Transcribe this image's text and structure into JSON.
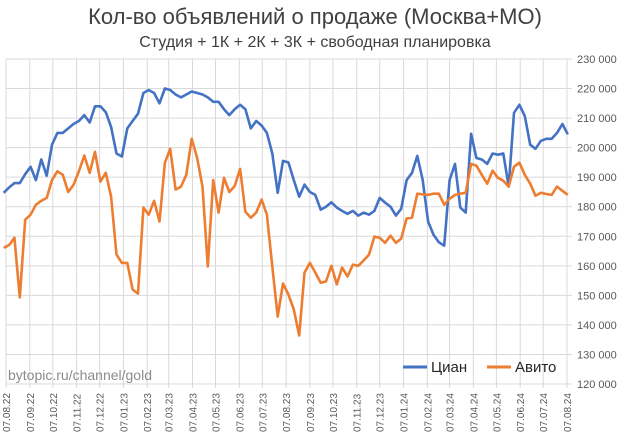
{
  "chart_data": {
    "type": "line",
    "title": "Кол-во объявлений о продаже (Москва+МО)",
    "subtitle": "Студия + 1К + 2К + 3К + свободная планировка",
    "watermark": "bytopic.ru/channel/gold",
    "ylim": [
      120000,
      230000
    ],
    "y_ticks": [
      "120 000",
      "130 000",
      "140 000",
      "150 000",
      "160 000",
      "170 000",
      "180 000",
      "190 000",
      "200 000",
      "210 000",
      "220 000",
      "230 000"
    ],
    "y_axis_position": "right",
    "x_ticks": [
      "07.08.22",
      "07.09.22",
      "07.10.22",
      "07.11.22",
      "07.12.22",
      "07.01.23",
      "07.02.23",
      "07.03.23",
      "07.04.23",
      "07.05.23",
      "07.06.23",
      "07.07.23",
      "07.08.23",
      "07.09.23",
      "07.10.23",
      "07.11.23",
      "07.12.23",
      "07.01.24",
      "07.02.24",
      "07.03.24",
      "07.04.24",
      "07.05.24",
      "07.06.24",
      "07.07.24",
      "07.08.24"
    ],
    "grid": true,
    "legend_position": "bottom-right",
    "x_start": "2022-08-04",
    "x_step_days": 7,
    "series": [
      {
        "name": "Циан",
        "color": "#4472C4",
        "values": [
          184700,
          186500,
          188000,
          188000,
          191000,
          193500,
          189000,
          196000,
          190500,
          201000,
          205000,
          205000,
          206500,
          208000,
          209000,
          211000,
          208500,
          214000,
          214000,
          212000,
          207000,
          198000,
          197000,
          206500,
          209000,
          211500,
          218500,
          219500,
          218500,
          215000,
          220000,
          219500,
          218000,
          217000,
          218000,
          219000,
          218500,
          218000,
          217000,
          215500,
          215500,
          213000,
          211000,
          213000,
          214500,
          213000,
          206500,
          209000,
          207500,
          205000,
          198000,
          184700,
          195500,
          195000,
          189000,
          183400,
          187500,
          185000,
          184000,
          179000,
          180000,
          181500,
          179700,
          178600,
          177600,
          178600,
          177000,
          178000,
          177300,
          178600,
          183000,
          181400,
          180000,
          177000,
          179300,
          189000,
          191500,
          197200,
          189000,
          175000,
          170500,
          168000,
          166800,
          189000,
          194500,
          179700,
          178000,
          204700,
          196500,
          196000,
          194500,
          198000,
          197600,
          198000,
          186800,
          211800,
          214500,
          210700,
          201000,
          199600,
          202300,
          203000,
          203000,
          205000,
          208000,
          204500
        ]
      },
      {
        "name": "Авито",
        "color": "#ED7D31",
        "values": [
          166100,
          167000,
          169500,
          149300,
          175600,
          177300,
          180700,
          182000,
          183000,
          189000,
          192000,
          190800,
          185000,
          187400,
          192000,
          197300,
          191500,
          198600,
          188500,
          191500,
          183400,
          163800,
          161000,
          161000,
          152000,
          150600,
          179700,
          177300,
          182000,
          175000,
          194900,
          199600,
          185800,
          186800,
          190800,
          203000,
          196600,
          186800,
          159800,
          189000,
          178000,
          189800,
          185000,
          187000,
          192800,
          178300,
          176300,
          178000,
          182400,
          177300,
          159800,
          142800,
          154000,
          150300,
          145200,
          136400,
          157700,
          161000,
          157700,
          154300,
          154700,
          160000,
          153700,
          159400,
          156400,
          160400,
          160000,
          161800,
          163800,
          169900,
          169500,
          167800,
          170200,
          167800,
          169200,
          176000,
          176300,
          184400,
          184200,
          184000,
          184400,
          184400,
          180700,
          182700,
          184000,
          184400,
          184700,
          194500,
          193900,
          190800,
          187800,
          192200,
          189800,
          188800,
          186800,
          193500,
          194900,
          190800,
          187800,
          183700,
          184700,
          184300,
          184000,
          186800,
          185400,
          184000
        ]
      }
    ]
  }
}
